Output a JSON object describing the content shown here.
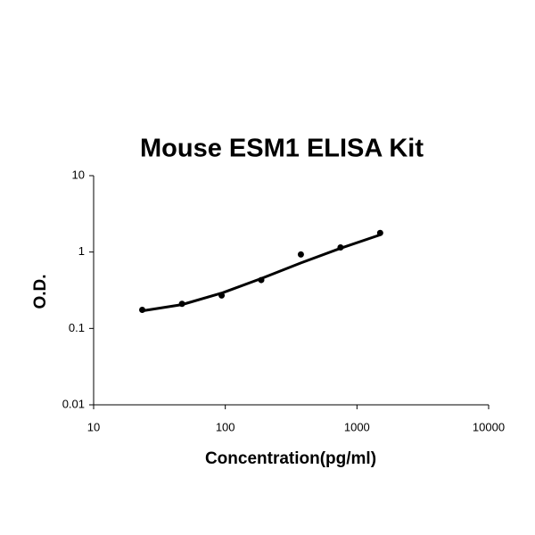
{
  "chart_data": {
    "type": "scatter",
    "title": "Mouse ESM1 ELISA Kit",
    "x_label": "Concentration(pg/ml)",
    "y_label": "O.D.",
    "xscale": "log",
    "yscale": "log",
    "xlim": [
      10,
      10000
    ],
    "ylim": [
      0.01,
      10
    ],
    "xticks": [
      10,
      100,
      1000,
      10000
    ],
    "yticks": [
      0.01,
      0.1,
      1,
      10
    ],
    "series": [
      {
        "color": "#000000",
        "mode": "markers",
        "x": [
          23.4,
          46.9,
          93.8,
          187.5,
          375,
          750,
          1500
        ],
        "values": [
          0.175,
          0.21,
          0.27,
          0.43,
          0.93,
          1.15,
          1.78
        ]
      },
      {
        "color": "#000000",
        "mode": "line",
        "x": [
          23.4,
          46.9,
          93.8,
          187.5,
          375,
          750,
          1500
        ],
        "values": [
          0.17,
          0.205,
          0.29,
          0.45,
          0.72,
          1.12,
          1.68
        ]
      }
    ]
  }
}
